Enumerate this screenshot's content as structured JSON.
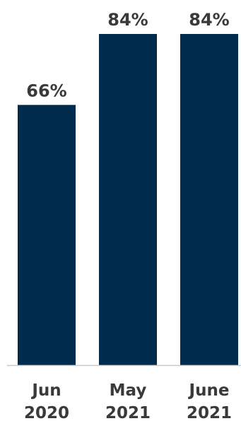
{
  "chart_data": {
    "type": "bar",
    "title": "",
    "xlabel": "",
    "ylabel": "",
    "categories": [
      [
        "Jun",
        "2020"
      ],
      [
        "May",
        "2021"
      ],
      [
        "June",
        "2021"
      ]
    ],
    "values": [
      66,
      84,
      84
    ],
    "data_labels": [
      "66%",
      "84%",
      "84%"
    ],
    "ylim": [
      0,
      100
    ],
    "grid": false,
    "legend": "none",
    "bar_color": "#002B4D",
    "label_color": "#3A3A3A",
    "axis_color": "#C8C8C8"
  }
}
